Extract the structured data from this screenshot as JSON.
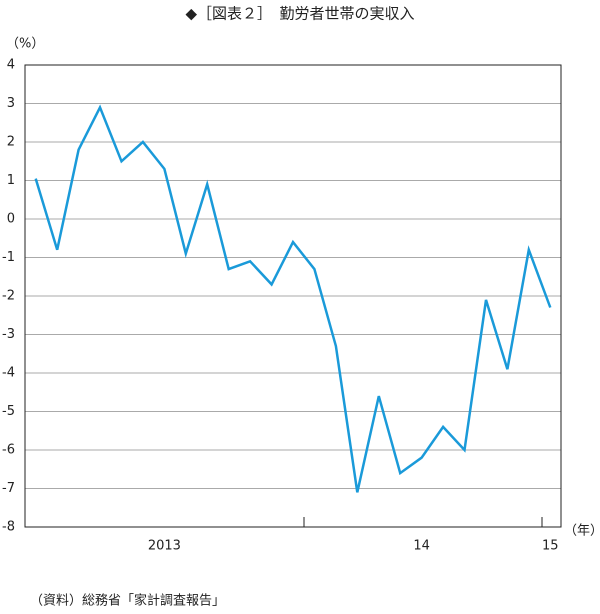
{
  "chart_data": {
    "type": "line",
    "title": "◆［図表２］　勤労者世帯の実収入",
    "y_unit": "（%）",
    "x_unit": "（年）",
    "source": "（資料）総務省「家計調査報告」",
    "categories": [
      null,
      null,
      null,
      null,
      null,
      null,
      "2013",
      null,
      null,
      null,
      null,
      null,
      null,
      null,
      null,
      null,
      null,
      null,
      "14",
      null,
      null,
      null,
      null,
      null,
      "15"
    ],
    "values": [
      1.05,
      -0.8,
      1.8,
      2.9,
      1.5,
      2.0,
      1.3,
      -0.9,
      0.9,
      -1.3,
      -1.1,
      -1.7,
      -0.6,
      -1.3,
      -3.3,
      -7.1,
      -4.6,
      -6.6,
      -6.2,
      -5.4,
      -6.0,
      -2.1,
      -3.9,
      -0.8,
      -2.3
    ],
    "color": "#1a9ad9",
    "ylim": [
      -8,
      4
    ],
    "yticks": [
      4,
      3,
      2,
      1,
      0,
      -1,
      -2,
      -3,
      -4,
      -5,
      -6,
      -7,
      -8
    ],
    "grid": true
  }
}
